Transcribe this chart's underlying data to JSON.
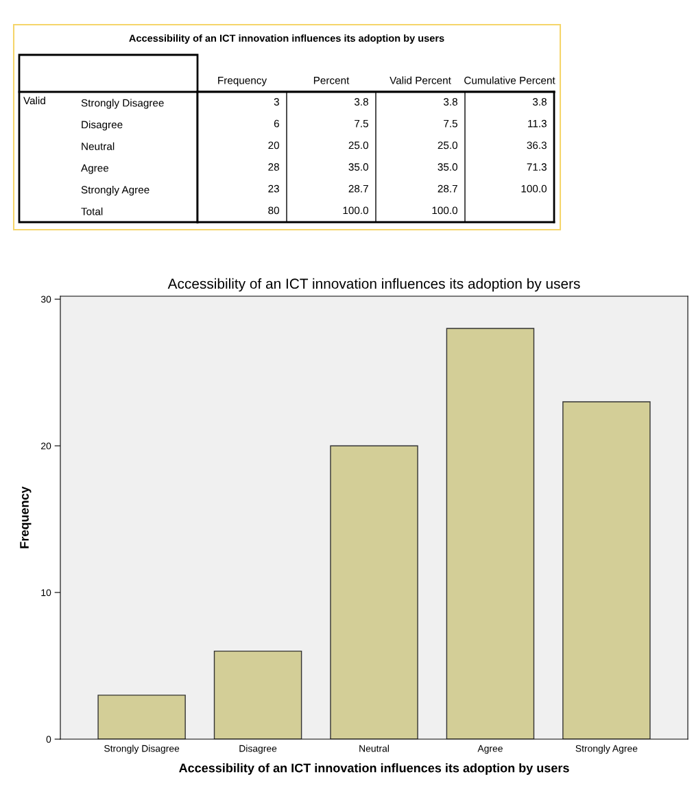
{
  "chart_data": [
    {
      "type": "heatmap",
      "title": "Accessibility of an ICT innovation influences its adoption by users",
      "annotations": [
        "Valid"
      ],
      "categories": [
        "Frequency",
        "Percent",
        "Valid Percent",
        "Cumulative Percent"
      ],
      "y_categories": [
        "Strongly Disagree",
        "Disagree",
        "Neutral",
        "Agree",
        "Strongly Agree",
        "Total"
      ],
      "cells": [
        [
          3,
          3.8,
          3.8,
          3.8
        ],
        [
          6,
          7.5,
          7.5,
          11.3
        ],
        [
          20,
          25.0,
          25.0,
          36.3
        ],
        [
          28,
          35.0,
          35.0,
          71.3
        ],
        [
          23,
          28.7,
          28.7,
          100.0
        ],
        [
          80,
          100.0,
          100.0,
          null
        ]
      ],
      "cell_labels": [
        [
          "3",
          "3.8",
          "3.8",
          "3.8"
        ],
        [
          "6",
          "7.5",
          "7.5",
          "11.3"
        ],
        [
          "20",
          "25.0",
          "25.0",
          "36.3"
        ],
        [
          "28",
          "35.0",
          "35.0",
          "71.3"
        ],
        [
          "23",
          "28.7",
          "28.7",
          "100.0"
        ],
        [
          "80",
          "100.0",
          "100.0",
          null
        ]
      ]
    },
    {
      "type": "bar",
      "title": "Accessibility of an ICT innovation influences its adoption by users",
      "xlabel": "Accessibility of an ICT innovation influences its adoption by users",
      "ylabel": "Frequency",
      "categories": [
        "Strongly Disagree",
        "Disagree",
        "Neutral",
        "Agree",
        "Strongly Agree"
      ],
      "values": [
        3,
        6,
        20,
        28,
        23
      ],
      "color": "#d3ce97",
      "ylim": [
        0,
        30.2
      ],
      "yticks": [
        0,
        10,
        20,
        30
      ],
      "grid": false
    }
  ]
}
